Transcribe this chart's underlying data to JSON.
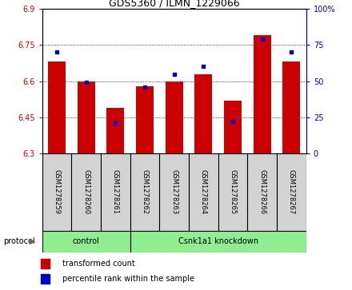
{
  "title": "GDS5360 / ILMN_1229066",
  "samples": [
    "GSM1278259",
    "GSM1278260",
    "GSM1278261",
    "GSM1278262",
    "GSM1278263",
    "GSM1278264",
    "GSM1278265",
    "GSM1278266",
    "GSM1278267"
  ],
  "transformed_counts": [
    6.68,
    6.6,
    6.49,
    6.58,
    6.6,
    6.63,
    6.52,
    6.79,
    6.68
  ],
  "percentile_ranks": [
    70,
    49,
    21,
    46,
    55,
    60,
    22,
    79,
    70
  ],
  "ylim_left": [
    6.3,
    6.9
  ],
  "ylim_right": [
    0,
    100
  ],
  "yticks_left": [
    6.3,
    6.45,
    6.6,
    6.75,
    6.9
  ],
  "yticks_right": [
    0,
    25,
    50,
    75,
    100
  ],
  "ytick_labels_left": [
    "6.3",
    "6.45",
    "6.6",
    "6.75",
    "6.9"
  ],
  "ytick_labels_right": [
    "0",
    "25",
    "50",
    "75",
    "100%"
  ],
  "bar_color": "#cc0000",
  "dot_color": "#0000cc",
  "groups": [
    {
      "label": "control",
      "start": 0,
      "end": 2
    },
    {
      "label": "Csnk1a1 knockdown",
      "start": 3,
      "end": 8
    }
  ],
  "protocol_label": "protocol",
  "legend_bar_label": "transformed count",
  "legend_dot_label": "percentile rank within the sample",
  "tick_area_bg": "#d3d3d3",
  "group_box_color": "#90ee90",
  "title_fontsize": 9,
  "tick_fontsize": 7,
  "label_fontsize": 6,
  "group_fontsize": 7,
  "legend_fontsize": 7
}
